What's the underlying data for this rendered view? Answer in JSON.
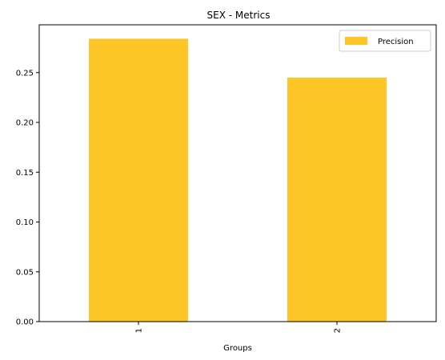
{
  "chart_data": {
    "type": "bar",
    "title": "SEX - Metrics",
    "xlabel": "Groups",
    "ylabel": "",
    "categories": [
      "1",
      "2"
    ],
    "series": [
      {
        "name": "Precision",
        "values": [
          0.284,
          0.245
        ],
        "color": "#fec627"
      }
    ],
    "ylim": [
      0,
      0.298
    ],
    "yticks": [
      0.0,
      0.05,
      0.1,
      0.15,
      0.2,
      0.25
    ],
    "ytick_labels": [
      "0.00",
      "0.05",
      "0.10",
      "0.15",
      "0.20",
      "0.25"
    ],
    "xtick_rotation": "vertical",
    "grid": false,
    "legend": "top-right"
  }
}
